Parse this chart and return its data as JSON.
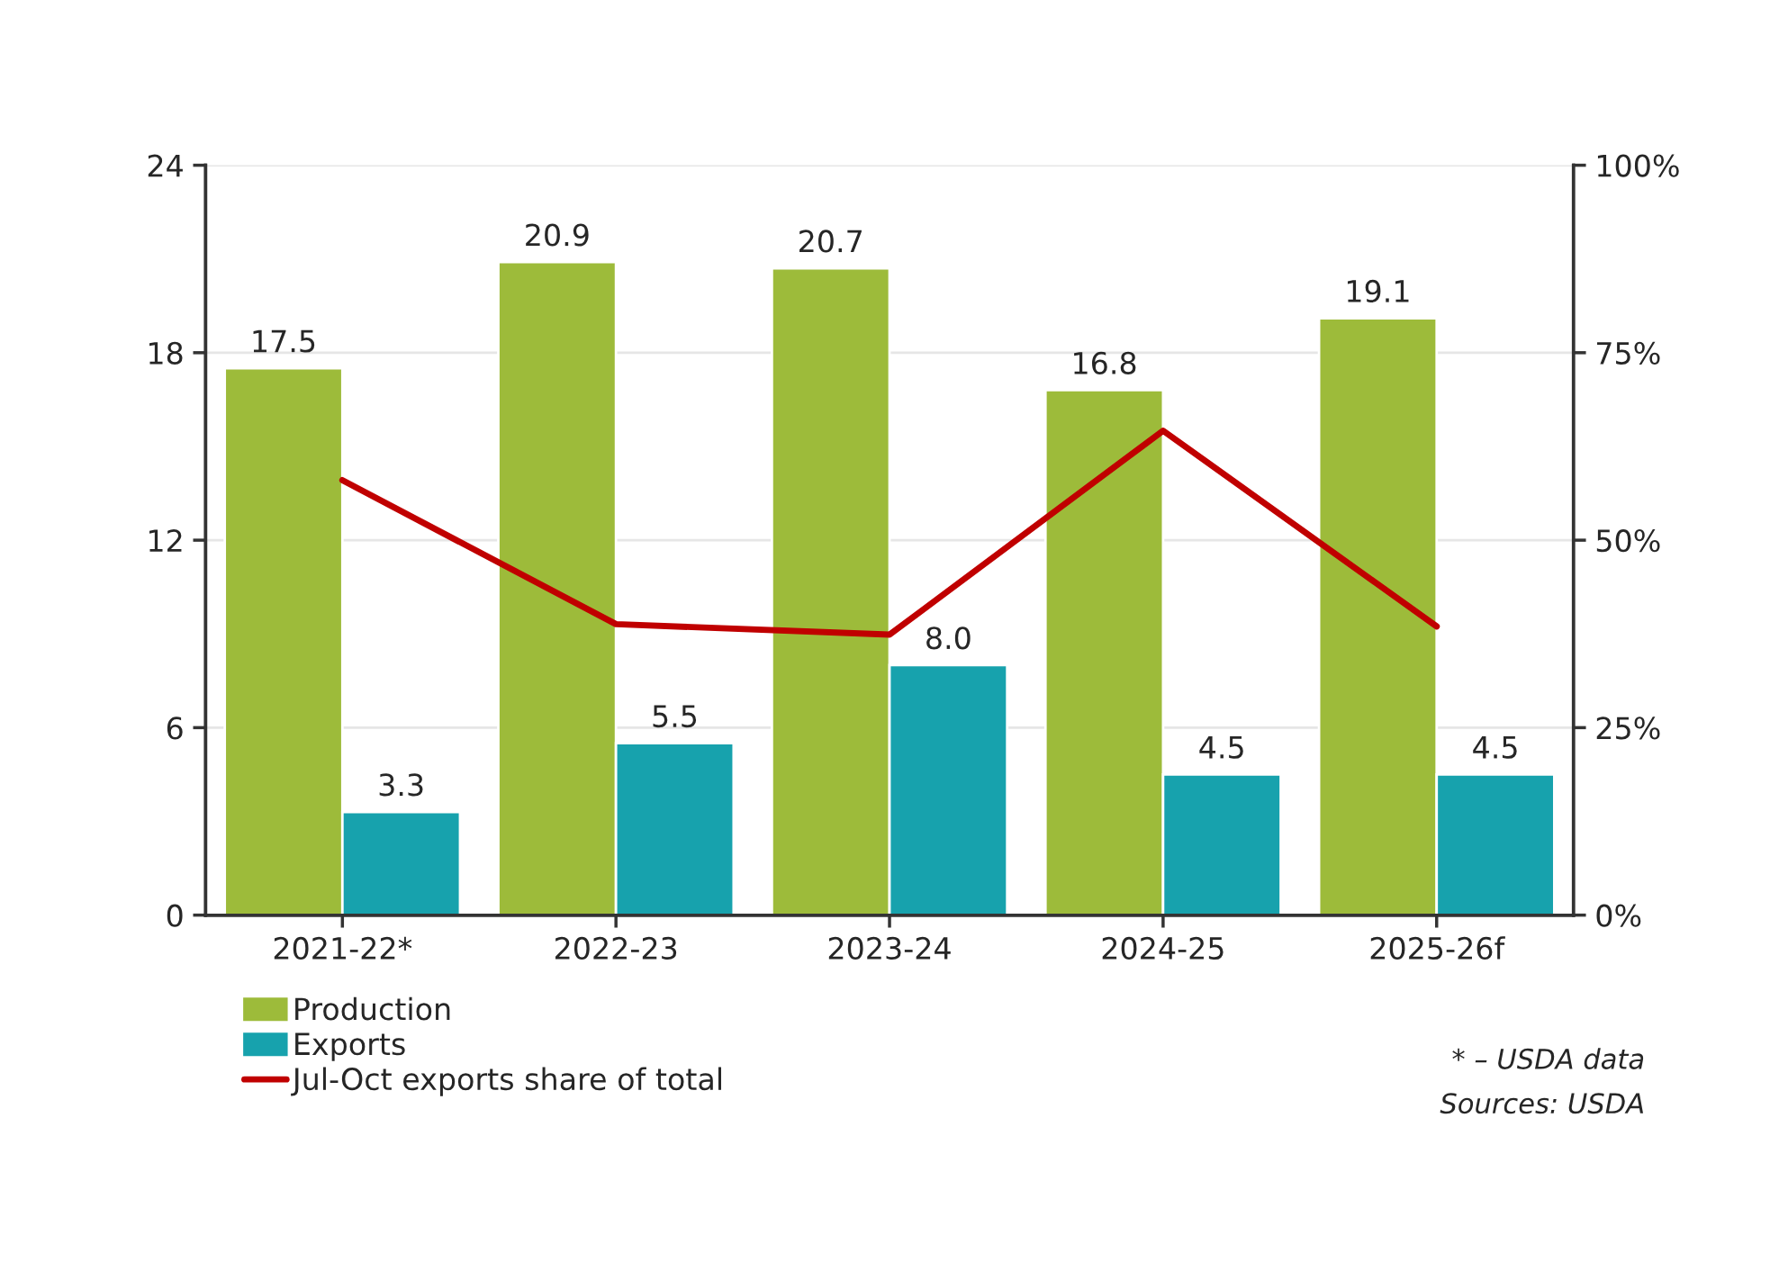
{
  "chart_data": {
    "type": "bar",
    "categories": [
      "2021-22*",
      "2022-23",
      "2023-24",
      "2024-25",
      "2025-26f"
    ],
    "series": [
      {
        "name": "Production",
        "color": "#9dbb3a",
        "values": [
          17.5,
          20.9,
          20.7,
          16.8,
          19.1
        ],
        "value_labels": [
          "17.5",
          "20.9",
          "20.7",
          "16.8",
          "19.1"
        ]
      },
      {
        "name": "Exports",
        "color": "#17a2ad",
        "values": [
          3.3,
          5.5,
          8.0,
          4.5,
          4.5
        ],
        "value_labels": [
          "3.3",
          "5.5",
          "8.0",
          "4.5",
          "4.5"
        ]
      },
      {
        "name": "Jul-Oct exports share of total",
        "color": "#c00000",
        "type": "line",
        "axis": "y2",
        "values": [
          58,
          38.8,
          37.4,
          64.6,
          38.5
        ]
      }
    ],
    "ylim": [
      0,
      24
    ],
    "yticks": [
      0,
      6,
      12,
      18,
      24
    ],
    "y2lim": [
      0,
      100
    ],
    "y2ticks": [
      {
        "value": 0,
        "label": "0%"
      },
      {
        "value": 25,
        "label": "25%"
      },
      {
        "value": 50,
        "label": "50%"
      },
      {
        "value": 75,
        "label": "75%"
      },
      {
        "value": 100,
        "label": "100%"
      }
    ],
    "grid": "y",
    "legend": "bottom left",
    "marker": "none",
    "line_style": "solid",
    "annotations": [
      "* – USDA data",
      "Sources: USDA"
    ]
  }
}
